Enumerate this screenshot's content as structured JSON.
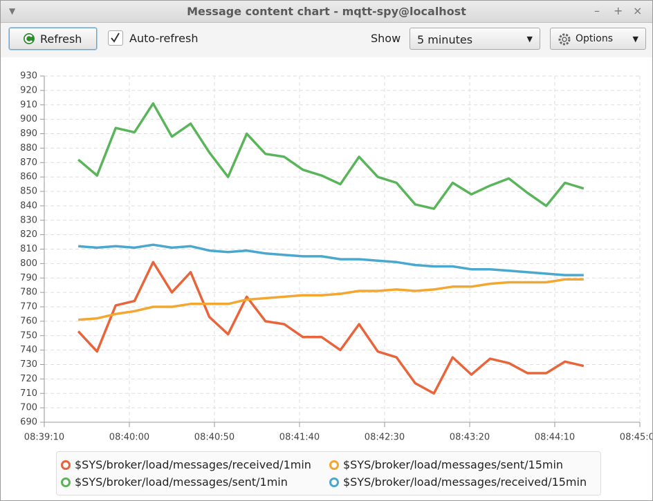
{
  "window": {
    "title": "Message content chart - mqtt-spy@localhost",
    "toolbar": {
      "refresh": "Refresh",
      "auto_refresh": "Auto-refresh",
      "show_label": "Show",
      "show_value": "5 minutes",
      "options": "Options"
    }
  },
  "chart_data": {
    "type": "line",
    "x": [
      "08:39:30",
      "08:39:41",
      "08:39:52",
      "08:40:03",
      "08:40:14",
      "08:40:25",
      "08:40:36",
      "08:40:47",
      "08:40:58",
      "08:41:09",
      "08:41:20",
      "08:41:31",
      "08:41:42",
      "08:41:53",
      "08:42:04",
      "08:42:15",
      "08:42:26",
      "08:42:37",
      "08:42:48",
      "08:42:59",
      "08:43:10",
      "08:43:21",
      "08:43:32",
      "08:43:43",
      "08:43:54",
      "08:44:05",
      "08:44:16",
      "08:44:27"
    ],
    "xlim": [
      "08:39:10",
      "08:45:00"
    ],
    "xticks": [
      "08:39:10",
      "08:40:00",
      "08:40:50",
      "08:41:40",
      "08:42:30",
      "08:43:20",
      "08:44:10",
      "08:45:00"
    ],
    "ylim": [
      690,
      930
    ],
    "yticks": [
      690,
      700,
      710,
      720,
      730,
      740,
      750,
      760,
      770,
      780,
      790,
      800,
      810,
      820,
      830,
      840,
      850,
      860,
      870,
      880,
      890,
      900,
      910,
      920,
      930
    ],
    "grid": true,
    "legend": "bottom",
    "series": [
      {
        "name": "$SYS/broker/load/messages/received/1min",
        "color": "#e8643a",
        "values": [
          753,
          739,
          771,
          774,
          801,
          780,
          794,
          763,
          751,
          777,
          760,
          758,
          749,
          749,
          740,
          758,
          739,
          735,
          717,
          710,
          735,
          723,
          734,
          731,
          724,
          724,
          732,
          729
        ]
      },
      {
        "name": "$SYS/broker/load/messages/sent/15min",
        "color": "#f3a731",
        "values": [
          761,
          762,
          765,
          767,
          770,
          770,
          772,
          772,
          772,
          775,
          776,
          777,
          778,
          778,
          779,
          781,
          781,
          782,
          781,
          782,
          784,
          784,
          786,
          787,
          787,
          787,
          789,
          789
        ]
      },
      {
        "name": "$SYS/broker/load/messages/sent/1min",
        "color": "#5ab55a",
        "values": [
          872,
          861,
          894,
          891,
          911,
          888,
          897,
          877,
          860,
          890,
          876,
          874,
          865,
          861,
          855,
          874,
          860,
          856,
          841,
          838,
          856,
          848,
          854,
          859,
          849,
          840,
          856,
          852
        ]
      },
      {
        "name": "$SYS/broker/load/messages/received/15min",
        "color": "#4aa8d0",
        "values": [
          812,
          811,
          812,
          811,
          813,
          811,
          812,
          809,
          808,
          809,
          807,
          806,
          805,
          805,
          803,
          803,
          802,
          801,
          799,
          798,
          798,
          796,
          796,
          795,
          794,
          793,
          792,
          792
        ]
      }
    ]
  }
}
